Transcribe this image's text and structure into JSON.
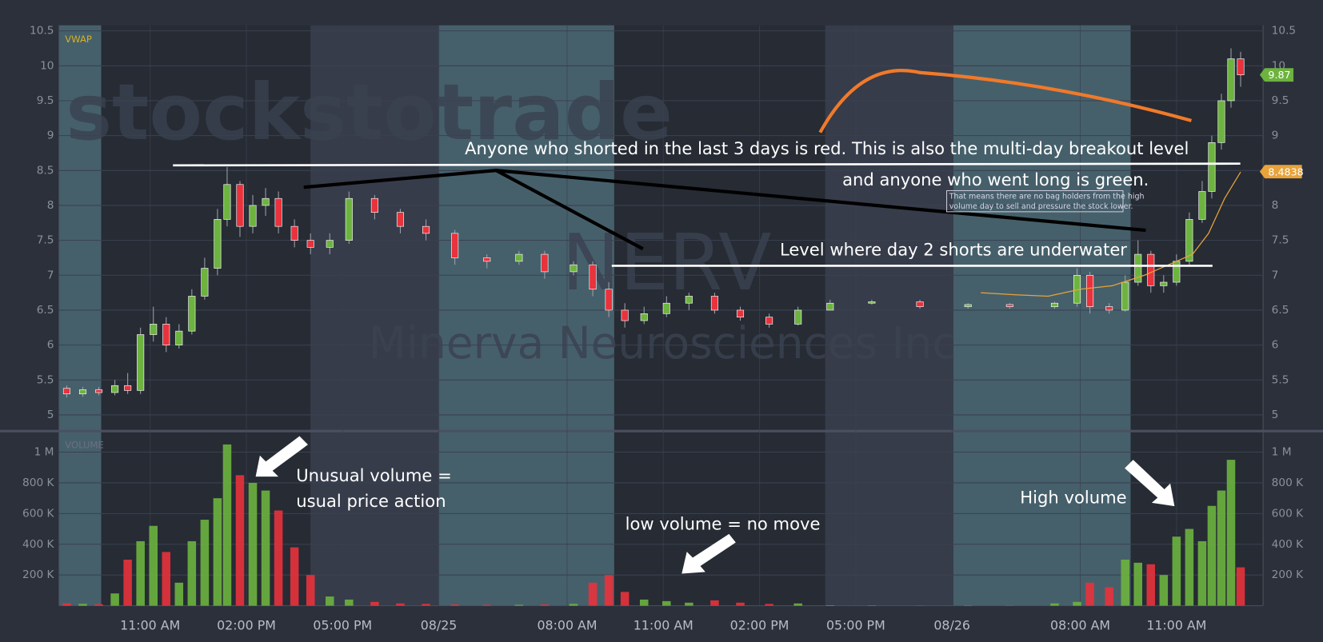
{
  "chart_data": {
    "type": "candlestick",
    "watermark": "stockstotrade",
    "ticker": "NERV",
    "company": "Minerva Neurosciences Inc",
    "vwap_label": "VWAP",
    "volume_label": "VOLUME",
    "up_color": "#6db33f",
    "down_color": "#e8323c",
    "vwap_color": "#e8a33a",
    "xlim": [
      0.16,
      37.7
    ],
    "xticks": [
      {
        "value": 3,
        "label": "11:00 AM"
      },
      {
        "value": 6,
        "label": "02:00 PM"
      },
      {
        "value": 9,
        "label": "05:00 PM"
      },
      {
        "value": 12,
        "label": "08/25"
      },
      {
        "value": 16,
        "label": "08:00 AM"
      },
      {
        "value": 19,
        "label": "11:00 AM"
      },
      {
        "value": 22,
        "label": "02:00 PM"
      },
      {
        "value": 25,
        "label": "05:00 PM"
      },
      {
        "value": 28,
        "label": "08/26"
      },
      {
        "value": 32,
        "label": "08:00 AM"
      },
      {
        "value": 35,
        "label": "11:00 AM"
      }
    ],
    "ylim": [
      4.78,
      10.58
    ],
    "yticks": [
      5,
      5.5,
      6,
      6.5,
      7,
      7.5,
      8,
      8.5,
      9,
      9.5,
      10,
      10.5
    ],
    "volume_ylim": [
      0,
      1115000
    ],
    "volume_yticks": [
      {
        "value": 200000,
        "label": "200 K"
      },
      {
        "value": 400000,
        "label": "400 K"
      },
      {
        "value": 600000,
        "label": "600 K"
      },
      {
        "value": 800000,
        "label": "800 K"
      },
      {
        "value": 1000000,
        "label": "1 M"
      }
    ],
    "x": [
      0.4,
      0.9,
      1.4,
      1.9,
      2.3,
      2.7,
      3.1,
      3.5,
      3.9,
      4.3,
      4.7,
      5.1,
      5.4,
      5.8,
      6.2,
      6.6,
      7.0,
      7.5,
      8.0,
      8.6,
      9.2,
      10.0,
      10.8,
      11.6,
      12.5,
      13.5,
      14.5,
      15.3,
      16.2,
      16.8,
      17.3,
      17.8,
      18.4,
      19.1,
      19.8,
      20.6,
      21.4,
      22.3,
      23.2,
      24.2,
      25.5,
      27.0,
      28.5,
      29.8,
      31.2,
      31.9,
      32.3,
      32.9,
      33.4,
      33.8,
      34.2,
      34.6,
      35.0,
      35.4,
      35.8,
      36.1,
      36.4,
      36.7,
      37.0
    ],
    "open": [
      5.38,
      5.3,
      5.36,
      5.32,
      5.42,
      5.35,
      6.15,
      6.3,
      6.0,
      6.2,
      6.7,
      7.1,
      7.8,
      8.3,
      7.7,
      8.0,
      8.1,
      7.7,
      7.5,
      7.4,
      7.5,
      8.1,
      7.9,
      7.7,
      7.6,
      7.25,
      7.2,
      7.3,
      7.05,
      7.15,
      6.8,
      6.5,
      6.35,
      6.45,
      6.6,
      6.7,
      6.5,
      6.4,
      6.3,
      6.5,
      6.6,
      6.62,
      6.55,
      6.58,
      6.55,
      6.6,
      7.0,
      6.55,
      6.5,
      6.9,
      7.3,
      6.85,
      6.9,
      7.2,
      7.8,
      8.2,
      8.9,
      9.5,
      10.1
    ],
    "high": [
      5.42,
      5.4,
      5.4,
      5.5,
      5.6,
      6.25,
      6.55,
      6.4,
      6.3,
      6.8,
      7.25,
      7.95,
      8.55,
      8.35,
      8.15,
      8.25,
      8.2,
      7.8,
      7.6,
      7.6,
      8.2,
      8.15,
      7.95,
      7.8,
      7.65,
      7.3,
      7.35,
      7.35,
      7.2,
      7.2,
      6.9,
      6.6,
      6.55,
      6.7,
      6.75,
      6.75,
      6.55,
      6.45,
      6.55,
      6.65,
      6.65,
      6.65,
      6.6,
      6.6,
      6.62,
      7.1,
      7.05,
      6.6,
      7.0,
      7.5,
      7.35,
      7.0,
      7.3,
      7.9,
      8.35,
      9.0,
      9.6,
      10.25,
      10.2
    ],
    "low": [
      5.25,
      5.26,
      5.28,
      5.28,
      5.3,
      5.3,
      6.05,
      5.9,
      5.95,
      6.15,
      6.65,
      7.0,
      7.7,
      7.55,
      7.6,
      7.85,
      7.6,
      7.4,
      7.3,
      7.3,
      7.45,
      7.8,
      7.6,
      7.5,
      7.15,
      7.1,
      7.15,
      6.95,
      7.0,
      6.7,
      6.4,
      6.25,
      6.3,
      6.4,
      6.5,
      6.45,
      6.35,
      6.25,
      6.28,
      6.5,
      6.58,
      6.52,
      6.52,
      6.52,
      6.52,
      6.55,
      6.45,
      6.45,
      6.48,
      6.85,
      6.75,
      6.75,
      6.85,
      7.15,
      7.75,
      8.1,
      8.8,
      9.4,
      9.7
    ],
    "close": [
      5.3,
      5.36,
      5.32,
      5.42,
      5.35,
      6.15,
      6.3,
      6.0,
      6.2,
      6.7,
      7.1,
      7.8,
      8.3,
      7.7,
      8.0,
      8.1,
      7.7,
      7.5,
      7.4,
      7.5,
      8.1,
      7.9,
      7.7,
      7.6,
      7.25,
      7.2,
      7.3,
      7.05,
      7.15,
      6.8,
      6.5,
      6.35,
      6.45,
      6.6,
      6.7,
      6.5,
      6.4,
      6.3,
      6.5,
      6.6,
      6.62,
      6.55,
      6.58,
      6.55,
      6.6,
      7.0,
      6.55,
      6.5,
      6.9,
      7.3,
      6.85,
      6.9,
      7.2,
      7.8,
      8.2,
      8.9,
      9.5,
      10.1,
      9.87
    ],
    "volume": [
      15000,
      12000,
      10000,
      80000,
      300000,
      420000,
      520000,
      350000,
      150000,
      420000,
      560000,
      700000,
      1050000,
      850000,
      800000,
      750000,
      620000,
      380000,
      200000,
      60000,
      40000,
      25000,
      15000,
      12000,
      8000,
      6000,
      6000,
      8000,
      12000,
      150000,
      200000,
      90000,
      40000,
      30000,
      20000,
      35000,
      20000,
      12000,
      15000,
      3000,
      2000,
      2000,
      2000,
      3000,
      15000,
      25000,
      150000,
      120000,
      300000,
      280000,
      270000,
      200000,
      450000,
      500000,
      420000,
      650000,
      750000,
      950000,
      250000
    ],
    "vwap": {
      "x": [
        28.9,
        30,
        31,
        32,
        33,
        34,
        35,
        35.5,
        36,
        36.5,
        37
      ],
      "values": [
        6.75,
        6.72,
        6.7,
        6.8,
        6.85,
        7.0,
        7.2,
        7.3,
        7.6,
        8.1,
        8.48
      ]
    },
    "last_price": 9.87,
    "vwap_last": 8.4838,
    "annotations": [
      "Anyone who shorted in the last 3 days is red. This is also the multi-day breakout level",
      "and anyone who went long is green.",
      "That means there are no bag holders from the high",
      "volume day to sell and pressure the stock lower.",
      "Level where day 2 shorts are underwater",
      "Unusual volume =",
      "usual price action",
      "low volume = no move",
      "High volume"
    ]
  }
}
